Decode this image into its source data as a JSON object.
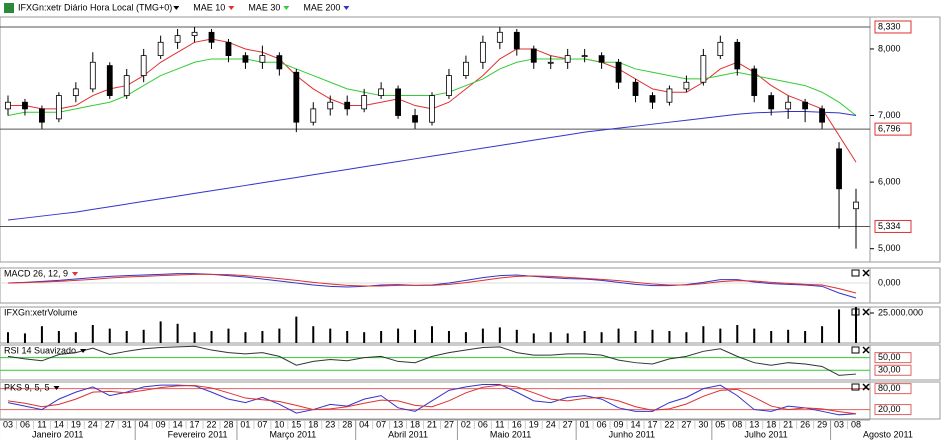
{
  "chart_data": [
    {
      "type": "candlestick",
      "title": "IFXGn:xetr Diário Hora Local (TMG+0)",
      "categories": [
        {
          "day": "03",
          "month": "Janeiro 2011"
        },
        {
          "day": "06",
          "month": "Janeiro 2011"
        },
        {
          "day": "11",
          "month": "Janeiro 2011"
        },
        {
          "day": "14",
          "month": "Janeiro 2011"
        },
        {
          "day": "19",
          "month": "Janeiro 2011"
        },
        {
          "day": "24",
          "month": "Janeiro 2011"
        },
        {
          "day": "27",
          "month": "Janeiro 2011"
        },
        {
          "day": "31",
          "month": "Janeiro 2011"
        },
        {
          "day": "04",
          "month": "Fevereiro 2011"
        },
        {
          "day": "09",
          "month": "Fevereiro 2011"
        },
        {
          "day": "14",
          "month": "Fevereiro 2011"
        },
        {
          "day": "17",
          "month": "Fevereiro 2011"
        },
        {
          "day": "22",
          "month": "Fevereiro 2011"
        },
        {
          "day": "28",
          "month": "Fevereiro 2011"
        },
        {
          "day": "01",
          "month": "Março 2011"
        },
        {
          "day": "07",
          "month": "Março 2011"
        },
        {
          "day": "10",
          "month": "Março 2011"
        },
        {
          "day": "15",
          "month": "Março 2011"
        },
        {
          "day": "18",
          "month": "Março 2011"
        },
        {
          "day": "23",
          "month": "Março 2011"
        },
        {
          "day": "28",
          "month": "Março 2011"
        },
        {
          "day": "04",
          "month": "Abril 2011"
        },
        {
          "day": "07",
          "month": "Abril 2011"
        },
        {
          "day": "13",
          "month": "Abril 2011"
        },
        {
          "day": "18",
          "month": "Abril 2011"
        },
        {
          "day": "21",
          "month": "Abril 2011"
        },
        {
          "day": "27",
          "month": "Abril 2011"
        },
        {
          "day": "02",
          "month": "Maio 2011"
        },
        {
          "day": "06",
          "month": "Maio 2011"
        },
        {
          "day": "11",
          "month": "Maio 2011"
        },
        {
          "day": "16",
          "month": "Maio 2011"
        },
        {
          "day": "19",
          "month": "Maio 2011"
        },
        {
          "day": "24",
          "month": "Maio 2011"
        },
        {
          "day": "27",
          "month": "Maio 2011"
        },
        {
          "day": "01",
          "month": "Junho 2011"
        },
        {
          "day": "06",
          "month": "Junho 2011"
        },
        {
          "day": "09",
          "month": "Junho 2011"
        },
        {
          "day": "14",
          "month": "Junho 2011"
        },
        {
          "day": "17",
          "month": "Junho 2011"
        },
        {
          "day": "22",
          "month": "Junho 2011"
        },
        {
          "day": "27",
          "month": "Junho 2011"
        },
        {
          "day": "30",
          "month": "Junho 2011"
        },
        {
          "day": "05",
          "month": "Julho 2011"
        },
        {
          "day": "08",
          "month": "Julho 2011"
        },
        {
          "day": "13",
          "month": "Julho 2011"
        },
        {
          "day": "18",
          "month": "Julho 2011"
        },
        {
          "day": "21",
          "month": "Julho 2011"
        },
        {
          "day": "26",
          "month": "Julho 2011"
        },
        {
          "day": "29",
          "month": "Julho 2011"
        },
        {
          "day": "03",
          "month": "Agosto 2011"
        },
        {
          "day": "08",
          "month": "Agosto 2011"
        }
      ],
      "open": [
        7.1,
        7.2,
        7.1,
        6.95,
        7.3,
        7.4,
        7.75,
        7.3,
        7.6,
        7.9,
        8.1,
        8.2,
        8.25,
        8.1,
        7.9,
        7.8,
        7.9,
        7.65,
        6.9,
        7.1,
        7.2,
        7.1,
        7.3,
        7.4,
        7.0,
        6.9,
        7.3,
        7.6,
        7.8,
        8.1,
        8.25,
        8.0,
        7.8,
        7.8,
        7.9,
        7.9,
        7.8,
        7.5,
        7.3,
        7.2,
        7.4,
        7.5,
        7.9,
        8.1,
        7.7,
        7.3,
        7.1,
        7.2,
        7.1,
        6.5,
        5.6
      ],
      "high": [
        7.3,
        7.25,
        7.15,
        7.35,
        7.5,
        7.95,
        7.8,
        7.7,
        8.0,
        8.2,
        8.3,
        8.33,
        8.3,
        8.15,
        7.95,
        8.05,
        7.95,
        7.7,
        7.2,
        7.3,
        7.3,
        7.4,
        7.5,
        7.45,
        7.1,
        7.35,
        7.7,
        7.9,
        8.2,
        8.33,
        8.3,
        8.05,
        7.9,
        8.0,
        8.0,
        7.95,
        7.85,
        7.55,
        7.35,
        7.45,
        7.6,
        8.0,
        8.2,
        8.15,
        7.75,
        7.35,
        7.3,
        7.25,
        7.15,
        6.6,
        5.9
      ],
      "low": [
        7.0,
        7.0,
        6.8,
        6.9,
        7.2,
        7.35,
        7.25,
        7.25,
        7.5,
        7.85,
        8.0,
        8.1,
        8.0,
        7.8,
        7.7,
        7.7,
        7.6,
        6.75,
        6.85,
        7.0,
        7.0,
        7.05,
        7.25,
        6.95,
        6.8,
        6.85,
        7.25,
        7.55,
        7.7,
        8.0,
        7.9,
        7.7,
        7.7,
        7.7,
        7.8,
        7.7,
        7.4,
        7.2,
        7.1,
        7.15,
        7.35,
        7.45,
        7.85,
        7.6,
        7.2,
        7.0,
        6.95,
        6.9,
        6.8,
        5.3,
        5.0
      ],
      "close": [
        7.2,
        7.1,
        6.9,
        7.3,
        7.4,
        7.8,
        7.3,
        7.6,
        7.9,
        8.1,
        8.2,
        8.25,
        8.1,
        7.9,
        7.8,
        7.9,
        7.7,
        6.9,
        7.1,
        7.2,
        7.1,
        7.3,
        7.4,
        7.0,
        6.9,
        7.3,
        7.6,
        7.8,
        8.1,
        8.25,
        8.0,
        7.8,
        7.8,
        7.9,
        7.9,
        7.8,
        7.5,
        7.3,
        7.2,
        7.4,
        7.5,
        7.9,
        8.1,
        7.7,
        7.3,
        7.1,
        7.2,
        7.1,
        6.9,
        5.9,
        5.7
      ],
      "series": [
        {
          "name": "MAE 10",
          "color": "#e03030",
          "values": [
            7.15,
            7.15,
            7.1,
            7.1,
            7.15,
            7.3,
            7.4,
            7.45,
            7.6,
            7.8,
            7.95,
            8.1,
            8.15,
            8.1,
            8.0,
            7.95,
            7.85,
            7.6,
            7.4,
            7.25,
            7.15,
            7.15,
            7.2,
            7.25,
            7.15,
            7.1,
            7.2,
            7.4,
            7.6,
            7.85,
            8.0,
            8.0,
            7.9,
            7.85,
            7.85,
            7.8,
            7.7,
            7.55,
            7.4,
            7.35,
            7.35,
            7.5,
            7.7,
            7.8,
            7.65,
            7.45,
            7.3,
            7.2,
            7.1,
            6.7,
            6.3
          ]
        },
        {
          "name": "MAE 30",
          "color": "#33cc33",
          "values": [
            7.0,
            7.05,
            7.05,
            7.05,
            7.1,
            7.15,
            7.2,
            7.3,
            7.45,
            7.6,
            7.7,
            7.8,
            7.85,
            7.85,
            7.85,
            7.8,
            7.8,
            7.7,
            7.6,
            7.5,
            7.4,
            7.35,
            7.3,
            7.3,
            7.3,
            7.3,
            7.35,
            7.45,
            7.55,
            7.7,
            7.8,
            7.85,
            7.85,
            7.85,
            7.85,
            7.8,
            7.8,
            7.7,
            7.65,
            7.6,
            7.55,
            7.55,
            7.6,
            7.65,
            7.6,
            7.55,
            7.5,
            7.45,
            7.35,
            7.2,
            7.0
          ]
        },
        {
          "name": "MAE 200",
          "color": "#3333cc",
          "values": [
            5.43,
            5.46,
            5.49,
            5.52,
            5.55,
            5.59,
            5.63,
            5.67,
            5.71,
            5.75,
            5.79,
            5.83,
            5.87,
            5.91,
            5.95,
            5.99,
            6.03,
            6.07,
            6.11,
            6.15,
            6.19,
            6.23,
            6.27,
            6.31,
            6.35,
            6.39,
            6.43,
            6.47,
            6.51,
            6.55,
            6.59,
            6.63,
            6.67,
            6.71,
            6.75,
            6.78,
            6.81,
            6.84,
            6.87,
            6.9,
            6.93,
            6.96,
            6.99,
            7.02,
            7.04,
            7.05,
            7.06,
            7.06,
            7.05,
            7.04,
            7.0
          ]
        }
      ],
      "ylim": [
        4.8,
        8.48
      ],
      "yticks": [
        {
          "value": 5,
          "label": "5,000"
        },
        {
          "value": 6,
          "label": "6,000"
        },
        {
          "value": 7,
          "label": "7,000"
        },
        {
          "value": 8,
          "label": "8,000"
        }
      ],
      "price_lines": [
        {
          "value": 8.33,
          "label": "8,330"
        },
        {
          "value": 6.796,
          "label": "6,796"
        },
        {
          "value": 5.334,
          "label": "5,334"
        }
      ]
    },
    {
      "type": "line",
      "title": "MACD 26, 12, 9",
      "title_color": "#e03030",
      "series": [
        {
          "color": "#3333cc",
          "values": [
            0.0,
            0.02,
            0.05,
            0.08,
            0.12,
            0.16,
            0.2,
            0.22,
            0.24,
            0.26,
            0.28,
            0.28,
            0.26,
            0.22,
            0.18,
            0.12,
            0.06,
            0.0,
            -0.06,
            -0.1,
            -0.12,
            -0.1,
            -0.06,
            -0.05,
            -0.07,
            -0.06,
            0.0,
            0.08,
            0.16,
            0.22,
            0.24,
            0.2,
            0.16,
            0.13,
            0.12,
            0.08,
            0.02,
            -0.04,
            -0.08,
            -0.08,
            -0.05,
            0.02,
            0.1,
            0.1,
            0.03,
            -0.02,
            -0.04,
            -0.06,
            -0.1,
            -0.3,
            -0.45
          ]
        },
        {
          "color": "#e03030",
          "values": [
            0.0,
            0.01,
            0.03,
            0.05,
            0.08,
            0.11,
            0.15,
            0.18,
            0.2,
            0.22,
            0.24,
            0.26,
            0.26,
            0.25,
            0.22,
            0.18,
            0.13,
            0.08,
            0.02,
            -0.03,
            -0.07,
            -0.09,
            -0.09,
            -0.07,
            -0.07,
            -0.07,
            -0.04,
            0.01,
            0.08,
            0.15,
            0.2,
            0.21,
            0.2,
            0.17,
            0.14,
            0.11,
            0.07,
            0.02,
            -0.03,
            -0.06,
            -0.06,
            -0.02,
            0.04,
            0.07,
            0.06,
            0.02,
            -0.01,
            -0.04,
            -0.06,
            -0.17,
            -0.3
          ]
        }
      ],
      "ylim": [
        -0.6,
        0.45
      ],
      "yticks": [
        {
          "value": 0,
          "label": "0,000"
        }
      ],
      "grid_color": "#dddddd"
    },
    {
      "type": "bar",
      "title": "IFXGn:xetrVolume",
      "title_color": "#000000",
      "color": "#000000",
      "values": [
        9000000,
        8000000,
        14000000,
        10000000,
        9000000,
        15000000,
        12000000,
        10000000,
        11000000,
        18000000,
        16000000,
        9000000,
        10000000,
        12000000,
        9000000,
        10000000,
        12000000,
        22000000,
        14000000,
        12000000,
        10000000,
        9000000,
        10000000,
        12000000,
        11000000,
        14000000,
        10000000,
        9000000,
        12000000,
        13000000,
        11000000,
        8000000,
        9000000,
        8000000,
        10000000,
        9000000,
        12000000,
        10000000,
        11000000,
        10000000,
        9000000,
        14000000,
        12000000,
        15000000,
        12000000,
        10000000,
        11000000,
        10000000,
        14000000,
        28000000,
        30000000
      ],
      "ylim": [
        0,
        30000000
      ],
      "yticks": [
        {
          "value": 25000000,
          "label": "25.000.000"
        }
      ]
    },
    {
      "type": "line",
      "title": "RSI 14 Suavizado",
      "title_color": "#000000",
      "series": [
        {
          "color": "#333333",
          "values": [
            52,
            48,
            45,
            55,
            58,
            65,
            55,
            60,
            64,
            66,
            67,
            68,
            62,
            58,
            56,
            58,
            52,
            38,
            44,
            47,
            45,
            50,
            52,
            44,
            42,
            52,
            58,
            62,
            66,
            67,
            58,
            54,
            54,
            56,
            56,
            54,
            46,
            42,
            40,
            48,
            52,
            60,
            64,
            52,
            42,
            38,
            42,
            40,
            36,
            22,
            24
          ]
        }
      ],
      "ylim": [
        14.6,
        70
      ],
      "yticks": [
        {
          "value": 50,
          "label": "50,00"
        },
        {
          "value": 30,
          "label": "30,00"
        }
      ],
      "grid_color": "#33cc33"
    },
    {
      "type": "line",
      "title": "PKS 9, 5, 5",
      "title_color": "#000000",
      "series": [
        {
          "color": "#3333cc",
          "values": [
            40,
            30,
            20,
            50,
            70,
            85,
            60,
            70,
            85,
            90,
            90,
            88,
            70,
            50,
            40,
            55,
            35,
            10,
            20,
            35,
            30,
            50,
            60,
            25,
            15,
            45,
            75,
            85,
            92,
            92,
            70,
            45,
            40,
            55,
            60,
            50,
            25,
            15,
            15,
            40,
            55,
            80,
            90,
            60,
            20,
            15,
            30,
            25,
            15,
            5,
            8
          ]
        },
        {
          "color": "#e03030",
          "values": [
            45,
            38,
            28,
            35,
            50,
            70,
            72,
            68,
            75,
            83,
            88,
            89,
            82,
            68,
            53,
            48,
            43,
            32,
            20,
            22,
            28,
            38,
            47,
            45,
            32,
            28,
            45,
            68,
            84,
            90,
            85,
            68,
            50,
            45,
            52,
            55,
            45,
            28,
            18,
            22,
            36,
            58,
            75,
            78,
            55,
            30,
            20,
            25,
            22,
            14,
            8
          ]
        }
      ],
      "ylim": [
        -7,
        99
      ],
      "yticks": [
        {
          "value": 80,
          "label": "80,00"
        },
        {
          "value": 20,
          "label": "20,00"
        }
      ],
      "grid_color": "#e06060"
    }
  ]
}
